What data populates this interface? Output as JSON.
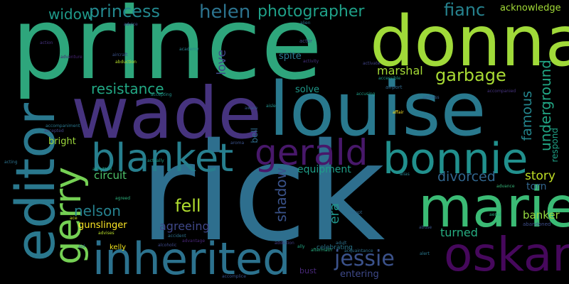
{
  "words": [
    {
      "text": "prince",
      "color": "#2ea67c"
    },
    {
      "text": "donna",
      "color": "#a0da39"
    },
    {
      "text": "wade",
      "color": "#46337e"
    },
    {
      "text": "louise",
      "color": "#29798e"
    },
    {
      "text": "rick",
      "color": "#2e6f8e"
    },
    {
      "text": "editor",
      "color": "#2a788e"
    },
    {
      "text": "marie",
      "color": "#3bbb75"
    },
    {
      "text": "oskar",
      "color": "#46085c"
    },
    {
      "text": "inherited",
      "color": "#2c728e"
    },
    {
      "text": "bonnie",
      "color": "#21908d"
    },
    {
      "text": "blanket",
      "color": "#277f8e"
    },
    {
      "text": "gerald",
      "color": "#48186a"
    },
    {
      "text": "gerry",
      "color": "#75d054"
    },
    {
      "text": "princess",
      "color": "#23888e"
    },
    {
      "text": "helen",
      "color": "#2c738e"
    },
    {
      "text": "photographer",
      "color": "#1fa088"
    },
    {
      "text": "widow",
      "color": "#1f9a8a"
    },
    {
      "text": "fianc",
      "color": "#26828e"
    },
    {
      "text": "acknowledge",
      "color": "#a2da37"
    },
    {
      "text": "garbage",
      "color": "#a8db34"
    },
    {
      "text": "resistance",
      "color": "#22a884"
    },
    {
      "text": "marshal",
      "color": "#a5db36"
    },
    {
      "text": "love",
      "color": "#3f4889"
    },
    {
      "text": "spite",
      "color": "#2a768e"
    },
    {
      "text": "solve",
      "color": "#1f998a"
    },
    {
      "text": "famous",
      "color": "#24868e"
    },
    {
      "text": "underground",
      "color": "#22a785"
    },
    {
      "text": "jessie",
      "color": "#3b528b"
    },
    {
      "text": "story",
      "color": "#c0df25"
    },
    {
      "text": "torn",
      "color": "#32658e"
    },
    {
      "text": "divorced",
      "color": "#31668e"
    },
    {
      "text": "respond",
      "color": "#1fa287"
    },
    {
      "text": "shadow",
      "color": "#3a538b"
    },
    {
      "text": "era",
      "color": "#1f968b"
    },
    {
      "text": "bell",
      "color": "#2e6e8e"
    },
    {
      "text": "equipment",
      "color": "#1f9e89"
    },
    {
      "text": "nelson",
      "color": "#26818e"
    },
    {
      "text": "fell",
      "color": "#b0dd2f"
    },
    {
      "text": "circuit",
      "color": "#4ec36b"
    },
    {
      "text": "bright",
      "color": "#9dd93b"
    },
    {
      "text": "agreeing",
      "color": "#3f4889"
    },
    {
      "text": "gunslinger",
      "color": "#fde725"
    },
    {
      "text": "turned",
      "color": "#26ad81"
    },
    {
      "text": "banker",
      "color": "#95d840"
    },
    {
      "text": "kelly",
      "color": "#f1e51d"
    },
    {
      "text": "entering",
      "color": "#3e4989"
    },
    {
      "text": "bust",
      "color": "#482878"
    },
    {
      "text": "celebrating",
      "color": "#2a788e"
    },
    {
      "text": "abandoned",
      "color": "#3d4e8a"
    },
    {
      "text": "accident",
      "color": "#2c728e"
    },
    {
      "text": "actually",
      "color": "#1f9e89"
    },
    {
      "text": "advance",
      "color": "#35b779"
    },
    {
      "text": "airport",
      "color": "#31688e"
    },
    {
      "text": "activate",
      "color": "#414487"
    },
    {
      "text": "accompaniment",
      "color": "#2a788e"
    },
    {
      "text": "actor",
      "color": "#3e4a89"
    },
    {
      "text": "agreed",
      "color": "#2db27d"
    },
    {
      "text": "address",
      "color": "#355f8d"
    },
    {
      "text": "adventure",
      "color": "#482475"
    },
    {
      "text": "aircraft",
      "color": "#3b528b"
    },
    {
      "text": "alias",
      "color": "#26828e"
    },
    {
      "text": "acquaintance",
      "color": "#2d708e"
    },
    {
      "text": "accepting",
      "color": "#21918c"
    },
    {
      "text": "accompanied",
      "color": "#46337e"
    },
    {
      "text": "affair",
      "color": "#fde725"
    },
    {
      "text": "abduction",
      "color": "#b5de2b"
    },
    {
      "text": "advantage",
      "color": "#482677"
    },
    {
      "text": "accusing",
      "color": "#1f9f88"
    },
    {
      "text": "aftermath",
      "color": "#27ad81"
    },
    {
      "text": "accomplice",
      "color": "#3b528b"
    },
    {
      "text": "ace",
      "color": "#cde11d"
    },
    {
      "text": "aid",
      "color": "#2e6f8e"
    },
    {
      "text": "action",
      "color": "#46337e"
    },
    {
      "text": "ally",
      "color": "#21a685"
    },
    {
      "text": "academy",
      "color": "#26828e"
    },
    {
      "text": "abuse",
      "color": "#3a548c"
    },
    {
      "text": "adopt",
      "color": "#31688e"
    },
    {
      "text": "alert",
      "color": "#2a788e"
    },
    {
      "text": "addiction",
      "color": "#433e85"
    },
    {
      "text": "acting",
      "color": "#2c728e"
    },
    {
      "text": "accepted",
      "color": "#414487"
    },
    {
      "text": "admitted",
      "color": "#20a386"
    },
    {
      "text": "advice",
      "color": "#3e4989"
    },
    {
      "text": "aisle",
      "color": "#21918c"
    },
    {
      "text": "alien",
      "color": "#2c728e"
    },
    {
      "text": "aware",
      "color": "#38598c"
    },
    {
      "text": "accessible",
      "color": "#1f9a8a"
    },
    {
      "text": "activity",
      "color": "#46337e"
    },
    {
      "text": "aroma",
      "color": "#3b528b"
    },
    {
      "text": "advises",
      "color": "#b8de29"
    },
    {
      "text": "aerial",
      "color": "#29af7f"
    },
    {
      "text": "adult",
      "color": "#2c728e"
    },
    {
      "text": "alcoholic",
      "color": "#3e4a89"
    }
  ]
}
